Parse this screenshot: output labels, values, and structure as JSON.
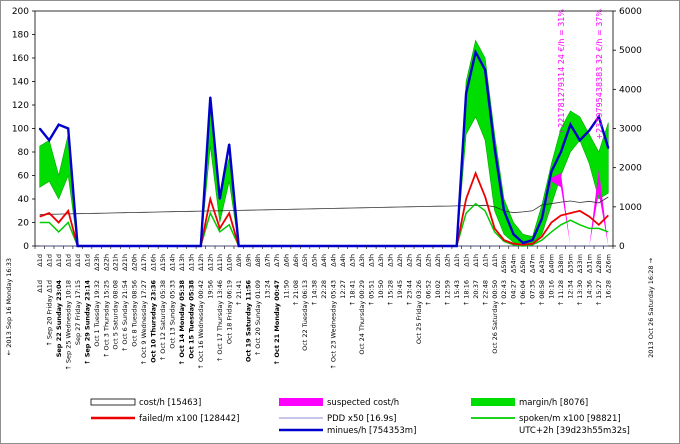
{
  "chart_data": {
    "type": "area",
    "yleft": {
      "ticks": [
        0,
        20,
        40,
        60,
        80,
        100,
        120,
        140,
        160,
        180,
        200
      ],
      "ylim": [
        0,
        200
      ]
    },
    "yright": {
      "ticks": [
        0,
        1000,
        2000,
        3000,
        4000,
        5000,
        6000
      ],
      "ylim": [
        0,
        6000
      ]
    },
    "grid": false,
    "legend_placement": "bottom",
    "arrow_left": "←",
    "arrow_right": "→",
    "x_end_labels": {
      "left": "2013 Sep 16 Monday 16:33",
      "right": "2013 Oct 26 Saturday 16:28"
    },
    "x_labels": [
      "Δ1d",
      "Sep 20 Friday Δ1d",
      "Sep 22 Sunday 23:04",
      "Sep 25 Wednesday 10:18",
      "Sep 27 Friday 17:15",
      "Sep 29 Sunday 23:14",
      "Oct 1 Tuesday 19:32",
      "Oct 3 Thursday 15:25",
      "Oct 5 Saturday 08:08",
      "Oct 6 Sunday 21:54",
      "Oct 8 Tuesday 08:56",
      "Oct 9 Wednesday 17:27",
      "Oct 10 Thursday 23:36",
      "Oct 12 Saturday 05:38",
      "Oct 13 Sunday 05:33",
      "Oct 14 Monday 05:38",
      "Oct 15 Tuesday 05:38",
      "Oct 16 Wednesday 00:42",
      "19:56",
      "Oct 17 Thursday 13:46",
      "Oct 18 Friday 06:19",
      "21:41",
      "Oct 19 Saturday 11:56",
      "Oct 20 Sunday 01:09",
      "13:24",
      "Oct 21 Monday 00:47",
      "11:50",
      "21:08",
      "Oct 22 Tuesday 06:13",
      "14:38",
      "22:28",
      "Oct 23 Wednesday 05:43",
      "12:27",
      "18:41",
      "Oct 24 Thursday 00:29",
      "05:51",
      "10:50",
      "15:28",
      "19:45",
      "23:44",
      "Oct 25 Friday 03:26",
      "06:52",
      "10:02",
      "12:59",
      "15:43",
      "18:16",
      "20:37",
      "22:48",
      "Oct 26 Saturday 00:50",
      "02:43",
      "04:27",
      "06:04",
      "07:35",
      "08:58",
      "10:16",
      "11:28",
      "12:34",
      "13:30",
      "14:36",
      "15:27",
      "16:28"
    ],
    "x_interval_labels": [
      "Δ1d",
      "Δ1d",
      "Δ1d",
      "Δ1d",
      "Δ1d",
      "Δ1d",
      "Δ23h",
      "Δ22h",
      "Δ21h",
      "Δ21h",
      "Δ20h",
      "Δ17h",
      "Δ16h",
      "Δ15h",
      "Δ14h",
      "Δ13h",
      "Δ13h",
      "Δ12h",
      "Δ12h",
      "Δ11h",
      "Δ10h",
      "Δ9h",
      "Δ9h",
      "Δ8h",
      "Δ7h",
      "Δ7h",
      "Δ6h",
      "Δ6h",
      "Δ5h",
      "Δ5h",
      "Δ4h",
      "Δ4h",
      "Δ4h",
      "Δ3h",
      "Δ3h",
      "Δ3h",
      "Δ3h",
      "Δ3h",
      "Δ2h",
      "Δ2h",
      "Δ2h",
      "Δ2h",
      "Δ2h",
      "Δ2h",
      "Δ1h",
      "Δ1h",
      "Δ1h",
      "Δ1h",
      "Δ1h",
      "Δ59m",
      "Δ54m",
      "Δ50m",
      "Δ47m",
      "Δ43m",
      "Δ40m",
      "Δ38m",
      "Δ35m",
      "Δ33m",
      "Δ31m",
      "Δ28m",
      "Δ26m"
    ],
    "bold_labels": [
      2,
      5,
      12,
      15,
      16,
      22,
      25
    ],
    "annotations": [
      {
        "text": "+221781279314   24 €/h = 31%",
        "index": 55
      },
      {
        "text": "+2379795438383   32 €/h = 37%",
        "index": 59
      }
    ],
    "series": [
      {
        "name": "cost/h [15463]",
        "axis": "right",
        "color": "#333333",
        "values": [
          800,
          810,
          815,
          820,
          825,
          830,
          835,
          840,
          845,
          850,
          855,
          860,
          865,
          870,
          875,
          880,
          885,
          890,
          895,
          900,
          905,
          910,
          915,
          920,
          925,
          930,
          935,
          940,
          945,
          950,
          955,
          960,
          965,
          970,
          975,
          980,
          985,
          990,
          995,
          1000,
          1005,
          1010,
          1015,
          1020,
          1025,
          1030,
          1035,
          1040,
          1000,
          900,
          850,
          870,
          900,
          1050,
          1080,
          1120,
          1150,
          1110,
          1140,
          1100,
          1250
        ]
      },
      {
        "name": "margin/h [8076]",
        "axis": "left",
        "color": "#00dd00",
        "lower": [
          50,
          55,
          40,
          60,
          0,
          0,
          0,
          0,
          0,
          0,
          0,
          0,
          0,
          0,
          0,
          0,
          0,
          0,
          85,
          20,
          55,
          0,
          0,
          0,
          0,
          0,
          0,
          0,
          0,
          0,
          0,
          0,
          0,
          0,
          0,
          0,
          0,
          0,
          0,
          0,
          0,
          0,
          0,
          0,
          0,
          95,
          110,
          90,
          30,
          10,
          3,
          0,
          2,
          10,
          35,
          60,
          80,
          90,
          70,
          40,
          45
        ],
        "upper": [
          85,
          90,
          60,
          95,
          0,
          0,
          0,
          0,
          0,
          0,
          0,
          0,
          0,
          0,
          0,
          0,
          0,
          0,
          120,
          45,
          75,
          0,
          0,
          0,
          0,
          0,
          0,
          0,
          0,
          0,
          0,
          0,
          0,
          0,
          0,
          0,
          0,
          0,
          0,
          0,
          0,
          0,
          0,
          0,
          0,
          140,
          175,
          160,
          95,
          40,
          20,
          10,
          8,
          35,
          70,
          100,
          115,
          110,
          95,
          80,
          105
        ]
      },
      {
        "name": "suspected cost/h",
        "axis": "left",
        "color": "#ff00ff",
        "lower": [
          0,
          0,
          0,
          0,
          0,
          0,
          0,
          0,
          0,
          0,
          0,
          0,
          0,
          0,
          0,
          0,
          0,
          0,
          0,
          0,
          0,
          0,
          0,
          0,
          0,
          0,
          0,
          0,
          0,
          0,
          0,
          0,
          0,
          0,
          0,
          0,
          0,
          0,
          0,
          0,
          0,
          0,
          0,
          0,
          0,
          0,
          0,
          0,
          0,
          0,
          0,
          0,
          0,
          0,
          55,
          50,
          0,
          0,
          0,
          45,
          0
        ],
        "upper": [
          0,
          0,
          0,
          0,
          0,
          0,
          0,
          0,
          0,
          0,
          0,
          0,
          0,
          0,
          0,
          0,
          0,
          0,
          0,
          0,
          0,
          0,
          0,
          0,
          0,
          0,
          0,
          0,
          0,
          0,
          0,
          0,
          0,
          0,
          0,
          0,
          0,
          0,
          0,
          0,
          0,
          0,
          0,
          0,
          0,
          0,
          0,
          0,
          0,
          0,
          0,
          0,
          0,
          0,
          58,
          62,
          0,
          0,
          0,
          65,
          0
        ]
      },
      {
        "name": "spoken/m x100 [98821]",
        "axis": "left",
        "color": "#00cc00",
        "values": [
          20,
          20,
          12,
          20,
          0,
          0,
          0,
          0,
          0,
          0,
          0,
          0,
          0,
          0,
          0,
          0,
          0,
          0,
          28,
          12,
          18,
          0,
          0,
          0,
          0,
          0,
          0,
          0,
          0,
          0,
          0,
          0,
          0,
          0,
          0,
          0,
          0,
          0,
          0,
          0,
          0,
          0,
          0,
          0,
          0,
          28,
          36,
          30,
          12,
          4,
          1,
          0,
          1,
          5,
          12,
          18,
          22,
          18,
          15,
          15,
          12
        ]
      },
      {
        "name": "failed/m x100 [128442]",
        "axis": "left",
        "color": "#ee0000",
        "values": [
          25,
          28,
          20,
          30,
          0,
          0,
          0,
          0,
          0,
          0,
          0,
          0,
          0,
          0,
          0,
          0,
          0,
          0,
          40,
          15,
          28,
          0,
          0,
          0,
          0,
          0,
          0,
          0,
          0,
          0,
          0,
          0,
          0,
          0,
          0,
          0,
          0,
          0,
          0,
          0,
          0,
          0,
          0,
          0,
          0,
          40,
          62,
          42,
          15,
          5,
          2,
          1,
          2,
          8,
          20,
          26,
          28,
          30,
          25,
          18,
          26
        ]
      },
      {
        "name": "PDD x50 [16.9s]",
        "axis": "left",
        "color": "#6666cc",
        "values": [
          0,
          0,
          0,
          0,
          0,
          0,
          0,
          0,
          0,
          0,
          0,
          0,
          0,
          0,
          0,
          0,
          0,
          0,
          0,
          0,
          0,
          0,
          0,
          0,
          0,
          0,
          0,
          0,
          0,
          0,
          0,
          0,
          0,
          0,
          0,
          0,
          0,
          0,
          0,
          0,
          0,
          0,
          0,
          0,
          0,
          0,
          0,
          0,
          0,
          0,
          0,
          0,
          0,
          0,
          0,
          0,
          0,
          0,
          0,
          0,
          0
        ]
      },
      {
        "name": "minues/h [754353m]",
        "axis": "right",
        "color": "#0000cc",
        "values": [
          3000,
          2700,
          3100,
          3000,
          0,
          0,
          0,
          0,
          0,
          0,
          0,
          0,
          0,
          0,
          0,
          0,
          0,
          0,
          3800,
          1200,
          2600,
          0,
          0,
          0,
          0,
          0,
          0,
          0,
          0,
          0,
          0,
          0,
          0,
          0,
          0,
          0,
          0,
          0,
          0,
          0,
          0,
          0,
          0,
          0,
          0,
          3900,
          4950,
          4500,
          2500,
          900,
          300,
          80,
          150,
          700,
          1900,
          2400,
          3100,
          2700,
          2950,
          3300,
          2500
        ]
      }
    ],
    "legend_items": [
      {
        "label": "cost/h [15463]",
        "kind": "box"
      },
      {
        "label": "suspected cost/h",
        "kind": "magenta"
      },
      {
        "label": "margin/h [8076]",
        "kind": "green"
      },
      {
        "label": "failed/m x100 [128442]",
        "kind": "red"
      },
      {
        "label": "PDD x50 [16.9s]",
        "kind": "thin"
      },
      {
        "label": "spoken/m x100 [98821]",
        "kind": "lgreen"
      },
      {
        "label": "minues/h [754353m]",
        "kind": "blue"
      },
      {
        "label": "UTC+2h [39d23h55m32s]",
        "kind": "none"
      }
    ]
  }
}
